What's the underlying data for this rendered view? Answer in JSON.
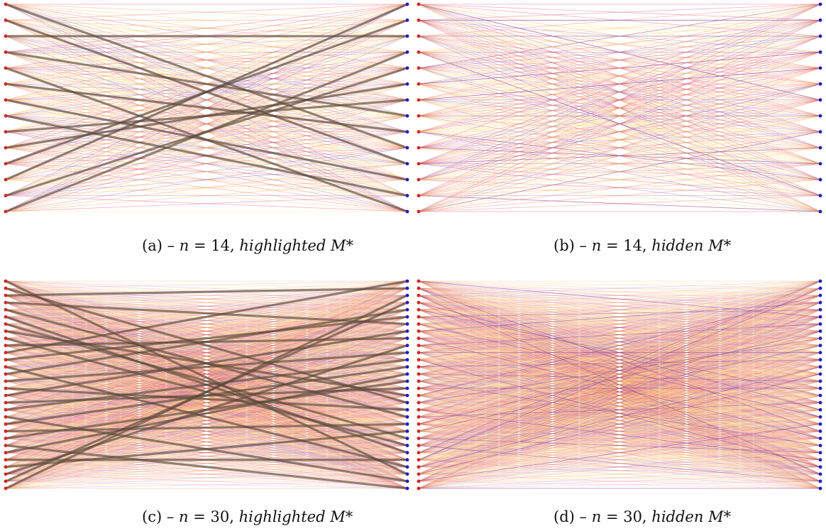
{
  "panels": [
    {
      "id": "a",
      "n": 14,
      "highlight": true,
      "caption": {
        "label": "(a)",
        "dash": "–",
        "lhs": "n",
        "eq": "= 14,",
        "mode": "highlighted",
        "sym": "M*"
      }
    },
    {
      "id": "b",
      "n": 14,
      "highlight": false,
      "caption": {
        "label": "(b)",
        "dash": "–",
        "lhs": "n",
        "eq": "= 14,",
        "mode": "hidden",
        "sym": "M*"
      }
    },
    {
      "id": "c",
      "n": 30,
      "highlight": true,
      "caption": {
        "label": "(c)",
        "dash": "–",
        "lhs": "n",
        "eq": "= 30,",
        "mode": "highlighted",
        "sym": "M*"
      }
    },
    {
      "id": "d",
      "n": 30,
      "highlight": false,
      "caption": {
        "label": "(d)",
        "dash": "–",
        "lhs": "n",
        "eq": "= 30,",
        "mode": "hidden",
        "sym": "M*"
      }
    }
  ],
  "colors": {
    "left_node": "#e0201a",
    "right_node": "#1b1bd6",
    "edge_palette": [
      "#ffd84a",
      "#ffb02e",
      "#ff7a1a",
      "#f04a3a",
      "#d81e55",
      "#7a3aa0"
    ],
    "highlight_edge": "#5a4a3a"
  }
}
